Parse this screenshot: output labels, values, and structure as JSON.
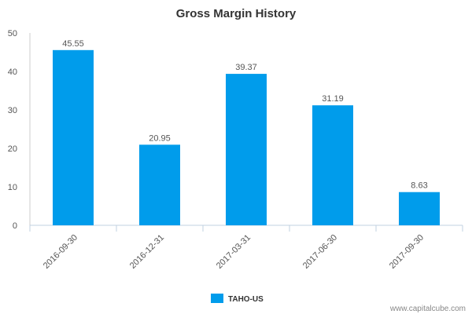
{
  "chart_data": {
    "type": "bar",
    "title": "Gross Margin History",
    "categories": [
      "2016-09-30",
      "2016-12-31",
      "2017-03-31",
      "2017-06-30",
      "2017-09-30"
    ],
    "series": [
      {
        "name": "TAHO-US",
        "values": [
          45.55,
          20.95,
          39.37,
          31.19,
          8.63
        ],
        "color": "#009CEB"
      }
    ],
    "data_labels": [
      "45.55",
      "20.95",
      "39.37",
      "31.19",
      "8.63"
    ],
    "ylim": [
      0,
      50
    ],
    "yticks": [
      "0",
      "10",
      "20",
      "30",
      "40",
      "50"
    ],
    "grid": false,
    "legend_position": "bottom-center"
  },
  "watermark": "www.capitalcube.com"
}
